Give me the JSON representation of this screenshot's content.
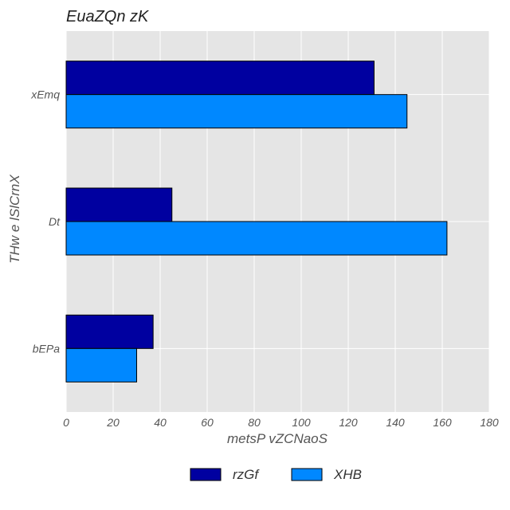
{
  "chart_data": {
    "type": "bar",
    "orientation": "horizontal",
    "title": "EuaZQn zK",
    "xlabel": "metsP  vZCNaoS",
    "ylabel": "THw e lSlCrnX",
    "categories": [
      "xEmq",
      "Dt",
      "bEPa"
    ],
    "series": [
      {
        "name": "rzGf",
        "color": "#0000a0",
        "values": [
          131,
          45,
          37
        ]
      },
      {
        "name": "XHB",
        "color": "#0088ff",
        "values": [
          145,
          162,
          30
        ]
      }
    ],
    "xlim": [
      0,
      180
    ],
    "xticks": [
      0,
      20,
      40,
      60,
      80,
      100,
      120,
      140,
      160,
      180
    ],
    "grid": true,
    "legend_position": "bottom-center"
  }
}
